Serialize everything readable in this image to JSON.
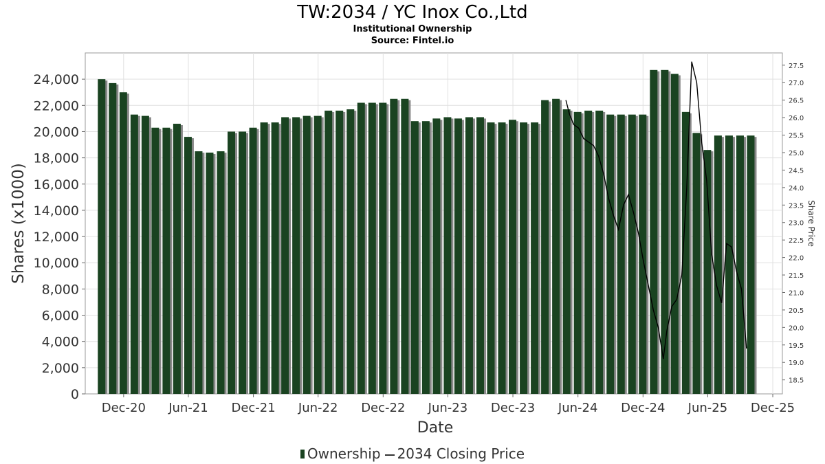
{
  "title": "TW:2034 / YC Inox Co.,Ltd",
  "subtitle": "Institutional Ownership",
  "source": "Source: Fintel.io",
  "colors": {
    "bar": "#1a4321",
    "bar_shadow": "#888888",
    "line": "#000000",
    "grid": "#e0e0e0"
  },
  "legend": {
    "bar_label": "Ownership",
    "line_label": "2034 Closing Price"
  },
  "chart_data": {
    "type": "bar",
    "title": "TW:2034 / YC Inox Co.,Ltd",
    "subtitle": "Institutional Ownership",
    "xlabel": "Date",
    "ylabel": "Shares (x1000)",
    "y2label": "Share Price",
    "ylim": [
      0,
      26000
    ],
    "y2lim": [
      18.1,
      27.85
    ],
    "xlim": [
      "2020-08-15",
      "2025-12-28"
    ],
    "yticks": [
      0,
      2000,
      4000,
      6000,
      8000,
      10000,
      12000,
      14000,
      16000,
      18000,
      20000,
      22000,
      24000
    ],
    "ytick_labels": [
      "0",
      "2,000",
      "4,000",
      "6,000",
      "8,000",
      "10,000",
      "12,000",
      "14,000",
      "16,000",
      "18,000",
      "20,000",
      "22,000",
      "24,000"
    ],
    "y2ticks": [
      18.5,
      19.0,
      19.5,
      20.0,
      20.5,
      21.0,
      21.5,
      22.0,
      22.5,
      23.0,
      23.5,
      24.0,
      24.5,
      25.0,
      25.5,
      26.0,
      26.5,
      27.0,
      27.5
    ],
    "y2tick_labels": [
      "18.5",
      "19.0",
      "19.5",
      "20.0",
      "20.5",
      "21.0",
      "21.5",
      "22.0",
      "22.5",
      "23.0",
      "23.5",
      "24.0",
      "24.5",
      "25.0",
      "25.5",
      "26.0",
      "26.5",
      "27.0",
      "27.5"
    ],
    "xticks": [
      {
        "label": "Dec-20",
        "date": "2020-12-01"
      },
      {
        "label": "Jun-21",
        "date": "2021-06-01"
      },
      {
        "label": "Dec-21",
        "date": "2021-12-01"
      },
      {
        "label": "Jun-22",
        "date": "2022-06-01"
      },
      {
        "label": "Dec-22",
        "date": "2022-12-01"
      },
      {
        "label": "Jun-23",
        "date": "2023-06-01"
      },
      {
        "label": "Dec-23",
        "date": "2023-12-01"
      },
      {
        "label": "Jun-24",
        "date": "2024-06-01"
      },
      {
        "label": "Dec-24",
        "date": "2024-12-01"
      },
      {
        "label": "Jun-25",
        "date": "2025-06-01"
      },
      {
        "label": "Dec-25",
        "date": "2025-12-01"
      }
    ],
    "grid": true,
    "legend_position": "bottom",
    "series": [
      {
        "name": "Ownership",
        "type": "bar",
        "x": [
          "2020-09-30",
          "2020-10-31",
          "2020-11-30",
          "2020-12-31",
          "2021-01-31",
          "2021-02-28",
          "2021-03-31",
          "2021-04-30",
          "2021-05-31",
          "2021-06-30",
          "2021-07-31",
          "2021-08-31",
          "2021-09-30",
          "2021-10-31",
          "2021-11-30",
          "2021-12-31",
          "2022-01-31",
          "2022-02-28",
          "2022-03-31",
          "2022-04-30",
          "2022-05-31",
          "2022-06-30",
          "2022-07-31",
          "2022-08-31",
          "2022-09-30",
          "2022-10-31",
          "2022-11-30",
          "2022-12-31",
          "2023-01-31",
          "2023-02-28",
          "2023-03-31",
          "2023-04-30",
          "2023-05-31",
          "2023-06-30",
          "2023-07-31",
          "2023-08-31",
          "2023-09-30",
          "2023-10-31",
          "2023-11-30",
          "2023-12-31",
          "2024-01-31",
          "2024-02-29",
          "2024-03-31",
          "2024-04-30",
          "2024-05-31",
          "2024-06-30",
          "2024-07-31",
          "2024-08-31",
          "2024-09-30",
          "2024-10-31",
          "2024-11-30",
          "2024-12-31",
          "2025-01-31",
          "2025-02-28",
          "2025-03-31",
          "2025-04-30",
          "2025-05-31",
          "2025-06-30",
          "2025-07-31",
          "2025-08-31",
          "2025-09-30"
        ],
        "values": [
          24000,
          23700,
          23000,
          21300,
          21200,
          20300,
          20300,
          20600,
          19600,
          18500,
          18400,
          18500,
          20000,
          20000,
          20300,
          20700,
          20700,
          21100,
          21100,
          21200,
          21200,
          21600,
          21600,
          21700,
          22200,
          22200,
          22200,
          22500,
          22500,
          20800,
          20800,
          21000,
          21100,
          21000,
          21100,
          21100,
          20700,
          20700,
          20900,
          20700,
          20700,
          22400,
          22500,
          21700,
          21500,
          21600,
          21600,
          21300,
          21300,
          21300,
          21300,
          24700,
          24700,
          24400,
          21500,
          19900,
          18600,
          19700,
          19700,
          19700,
          19700
        ]
      },
      {
        "name": "2034 Closing Price",
        "type": "line",
        "x": [
          "2024-04-28",
          "2024-05-08",
          "2024-05-20",
          "2024-06-03",
          "2024-06-17",
          "2024-07-01",
          "2024-07-15",
          "2024-07-29",
          "2024-08-12",
          "2024-08-26",
          "2024-09-09",
          "2024-09-23",
          "2024-10-07",
          "2024-10-21",
          "2024-11-04",
          "2024-11-18",
          "2024-12-02",
          "2024-12-16",
          "2024-12-30",
          "2025-01-13",
          "2025-01-27",
          "2025-02-06",
          "2025-02-20",
          "2025-03-06",
          "2025-03-20",
          "2025-04-03",
          "2025-04-17",
          "2025-05-01",
          "2025-05-15",
          "2025-05-29",
          "2025-06-12",
          "2025-06-26",
          "2025-07-10",
          "2025-07-24",
          "2025-08-07",
          "2025-08-21",
          "2025-09-04",
          "2025-09-18"
        ],
        "values": [
          26.5,
          26.1,
          25.8,
          25.7,
          25.4,
          25.3,
          25.2,
          24.9,
          24.4,
          23.7,
          23.2,
          22.8,
          23.5,
          23.8,
          23.3,
          22.7,
          21.9,
          21.2,
          20.5,
          20.0,
          19.1,
          19.9,
          20.6,
          20.8,
          21.5,
          24.0,
          27.6,
          27.0,
          25.3,
          24.2,
          22.1,
          21.2,
          20.7,
          22.4,
          22.3,
          21.6,
          21.1,
          19.4
        ]
      }
    ]
  }
}
